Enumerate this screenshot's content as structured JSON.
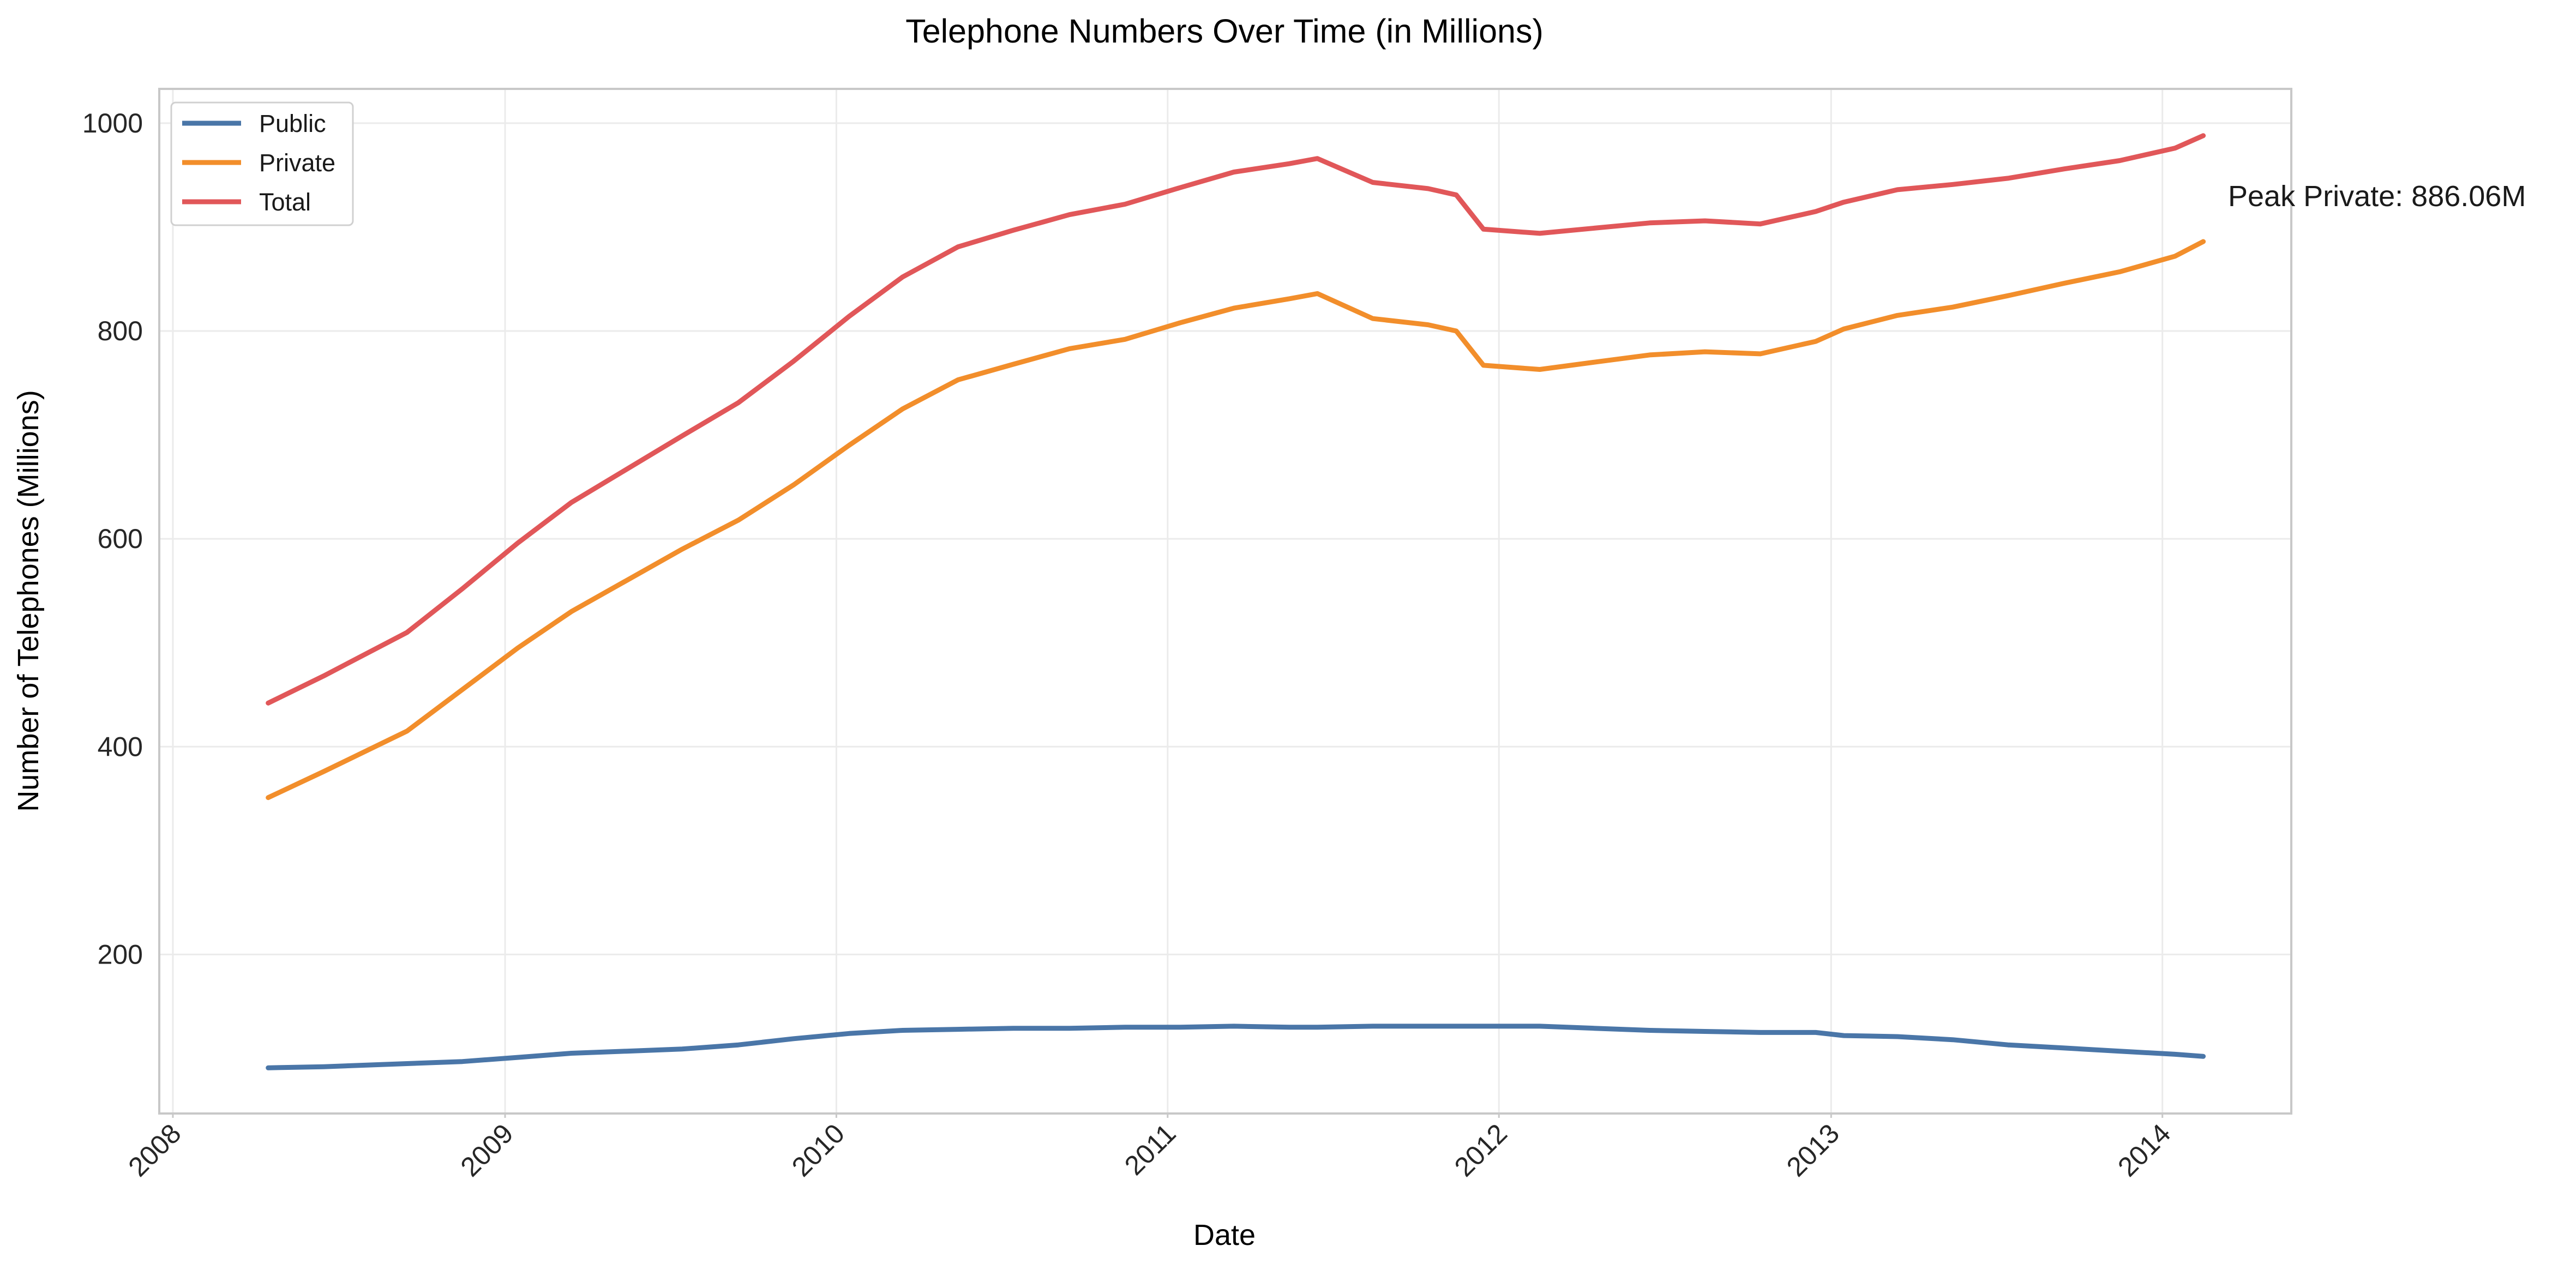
{
  "chart_data": {
    "type": "line",
    "title": "Telephone Numbers Over Time (in Millions)",
    "xlabel": "Date",
    "ylabel": "Number of Telephones (Millions)",
    "xlim": [
      "2007-12-17",
      "2014-05-23"
    ],
    "ylim": [
      47,
      1033
    ],
    "x_ticks": [
      "2008",
      "2009",
      "2010",
      "2011",
      "2012",
      "2013",
      "2014"
    ],
    "y_ticks": [
      200,
      400,
      600,
      800,
      1000
    ],
    "grid": true,
    "legend_position": "top-left",
    "annotation": "Peak Private: 886.06M",
    "x": [
      "2008-04",
      "2008-06",
      "2008-09",
      "2008-11",
      "2009-01",
      "2009-03",
      "2009-05",
      "2009-07",
      "2009-09",
      "2009-11",
      "2010-01",
      "2010-03",
      "2010-05",
      "2010-07",
      "2010-09",
      "2010-11",
      "2011-01",
      "2011-03",
      "2011-05",
      "2011-06",
      "2011-08",
      "2011-10",
      "2011-11",
      "2011-12",
      "2012-02",
      "2012-04",
      "2012-06",
      "2012-08",
      "2012-10",
      "2012-12",
      "2013-01",
      "2013-03",
      "2013-05",
      "2013-07",
      "2013-09",
      "2013-11",
      "2014-01",
      "2014-02"
    ],
    "series": [
      {
        "name": "Public",
        "color": "#4a76a8",
        "values": [
          91,
          92,
          95,
          97,
          101,
          105,
          107,
          109,
          113,
          119,
          124,
          127,
          128,
          129,
          129,
          130,
          130,
          131,
          130,
          130,
          131,
          131,
          131,
          131,
          131,
          129,
          127,
          126,
          125,
          125,
          122,
          121,
          118,
          113,
          110,
          107,
          104,
          102
        ]
      },
      {
        "name": "Private",
        "color": "#f28e2b",
        "values": [
          351,
          376,
          415,
          455,
          495,
          530,
          560,
          590,
          618,
          652,
          690,
          725,
          753,
          768,
          783,
          792,
          808,
          822,
          831,
          836,
          812,
          806,
          800,
          767,
          763,
          770,
          777,
          780,
          778,
          790,
          802,
          815,
          823,
          834,
          846,
          857,
          872,
          886.06
        ]
      },
      {
        "name": "Total",
        "color": "#e15759",
        "values": [
          442,
          468,
          510,
          552,
          596,
          635,
          667,
          699,
          731,
          771,
          814,
          852,
          881,
          897,
          912,
          922,
          938,
          953,
          961,
          966,
          943,
          937,
          931,
          898,
          894,
          899,
          904,
          906,
          903,
          915,
          924,
          936,
          941,
          947,
          956,
          964,
          976,
          988
        ]
      }
    ]
  }
}
